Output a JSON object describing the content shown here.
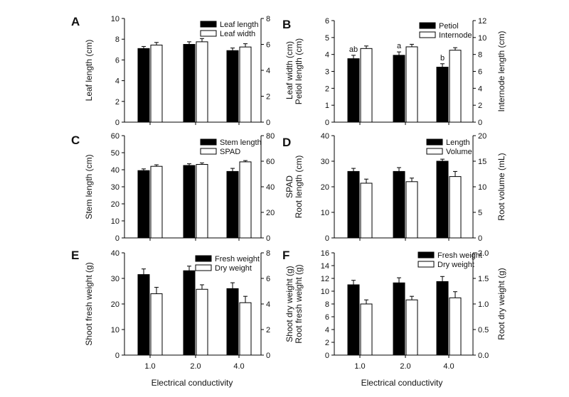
{
  "figure": {
    "xlabel": "Electrical conductivity"
  },
  "chart_data": [
    {
      "panel": "A",
      "type": "bar",
      "categories": [
        "1.0",
        "2.0",
        "4.0"
      ],
      "left_axis": {
        "label": "Leaf length (cm)",
        "ylim": [
          0,
          10
        ],
        "ticks": [
          0,
          2,
          4,
          6,
          8,
          10
        ]
      },
      "right_axis": {
        "label": "Leaf width (cm)",
        "ylim": [
          0,
          8
        ],
        "ticks": [
          0,
          2,
          4,
          6,
          8
        ]
      },
      "series": [
        {
          "name": "Leaf length",
          "axis": "left",
          "fill": "#000000",
          "values": [
            7.1,
            7.5,
            6.9
          ],
          "errors": [
            0.2,
            0.25,
            0.25
          ]
        },
        {
          "name": "Leaf width",
          "axis": "right",
          "fill": "#ffffff",
          "values": [
            5.95,
            6.2,
            5.8
          ],
          "errors": [
            0.2,
            0.25,
            0.25
          ]
        }
      ],
      "annotations": []
    },
    {
      "panel": "B",
      "type": "bar",
      "categories": [
        "1.0",
        "2.0",
        "4.0"
      ],
      "left_axis": {
        "label": "Petiol length (cm)",
        "ylim": [
          0,
          6
        ],
        "ticks": [
          0,
          1,
          2,
          3,
          4,
          5,
          6
        ]
      },
      "right_axis": {
        "label": "Internode length (cm)",
        "ylim": [
          0,
          12
        ],
        "ticks": [
          0,
          2,
          4,
          6,
          8,
          10,
          12
        ]
      },
      "series": [
        {
          "name": "Petiol",
          "axis": "left",
          "fill": "#000000",
          "values": [
            3.75,
            3.95,
            3.25
          ],
          "errors": [
            0.2,
            0.2,
            0.2
          ]
        },
        {
          "name": "Internode",
          "axis": "right",
          "fill": "#ffffff",
          "values": [
            8.7,
            8.9,
            8.5
          ],
          "errors": [
            0.3,
            0.3,
            0.3
          ]
        }
      ],
      "annotations": [
        "ab",
        "a",
        "b"
      ]
    },
    {
      "panel": "C",
      "type": "bar",
      "categories": [
        "1.0",
        "2.0",
        "4.0"
      ],
      "left_axis": {
        "label": "Stem length (cm)",
        "ylim": [
          0,
          60
        ],
        "ticks": [
          0,
          10,
          20,
          30,
          40,
          50,
          60
        ]
      },
      "right_axis": {
        "label": "SPAD",
        "ylim": [
          0,
          80
        ],
        "ticks": [
          0,
          20,
          40,
          60,
          80
        ]
      },
      "series": [
        {
          "name": "Stem length",
          "axis": "left",
          "fill": "#000000",
          "values": [
            39.5,
            42.5,
            39
          ],
          "errors": [
            1,
            1,
            1.8
          ]
        },
        {
          "name": "SPAD",
          "axis": "right",
          "fill": "#ffffff",
          "values": [
            56,
            57.5,
            59.5
          ],
          "errors": [
            1.2,
            1.2,
            1.0
          ]
        }
      ],
      "annotations": []
    },
    {
      "panel": "D",
      "type": "bar",
      "categories": [
        "1.0",
        "2.0",
        "4.0"
      ],
      "left_axis": {
        "label": "Root length (cm)",
        "ylim": [
          0,
          40
        ],
        "ticks": [
          0,
          10,
          20,
          30,
          40
        ]
      },
      "right_axis": {
        "label": "Root volume (mL)",
        "ylim": [
          0,
          20
        ],
        "ticks": [
          0,
          5,
          10,
          15,
          20
        ]
      },
      "series": [
        {
          "name": "Length",
          "axis": "left",
          "fill": "#000000",
          "values": [
            26,
            26,
            30
          ],
          "errors": [
            1.2,
            1.5,
            0.8
          ]
        },
        {
          "name": "Volume",
          "axis": "right",
          "fill": "#ffffff",
          "values": [
            10.7,
            11,
            12
          ],
          "errors": [
            0.8,
            0.7,
            1.0
          ]
        }
      ],
      "annotations": []
    },
    {
      "panel": "E",
      "type": "bar",
      "categories": [
        "1.0",
        "2.0",
        "4.0"
      ],
      "left_axis": {
        "label": "Shoot fresh weight (g)",
        "ylim": [
          0,
          40
        ],
        "ticks": [
          0,
          10,
          20,
          30,
          40
        ]
      },
      "right_axis": {
        "label": "Shoot dry weight (g)",
        "ylim": [
          0,
          8
        ],
        "ticks": [
          0,
          2,
          4,
          6,
          8
        ]
      },
      "series": [
        {
          "name": "Fresh weight",
          "axis": "left",
          "fill": "#000000",
          "values": [
            31.5,
            33,
            26
          ],
          "errors": [
            2.2,
            1.8,
            2.3
          ]
        },
        {
          "name": "Dry weight",
          "axis": "right",
          "fill": "#ffffff",
          "values": [
            4.8,
            5.15,
            4.1
          ],
          "errors": [
            0.5,
            0.35,
            0.5
          ]
        }
      ],
      "annotations": []
    },
    {
      "panel": "F",
      "type": "bar",
      "categories": [
        "1.0",
        "2.0",
        "4.0"
      ],
      "left_axis": {
        "label": "Root fresh weight (g)",
        "ylim": [
          0,
          16
        ],
        "ticks": [
          0,
          2,
          4,
          6,
          8,
          10,
          12,
          14,
          16
        ]
      },
      "right_axis": {
        "label": "Root dry weight (g)",
        "ylim": [
          0,
          2.0
        ],
        "ticks": [
          "0.0",
          "0.5",
          "1.0",
          "1.5",
          "2.0"
        ]
      },
      "series": [
        {
          "name": "Fresh weight",
          "axis": "left",
          "fill": "#000000",
          "values": [
            11,
            11.3,
            11.5
          ],
          "errors": [
            0.7,
            0.8,
            0.8
          ]
        },
        {
          "name": "Dry weight",
          "axis": "right",
          "fill": "#ffffff",
          "values": [
            1.0,
            1.08,
            1.12
          ],
          "errors": [
            0.08,
            0.07,
            0.12
          ]
        }
      ],
      "annotations": []
    }
  ]
}
